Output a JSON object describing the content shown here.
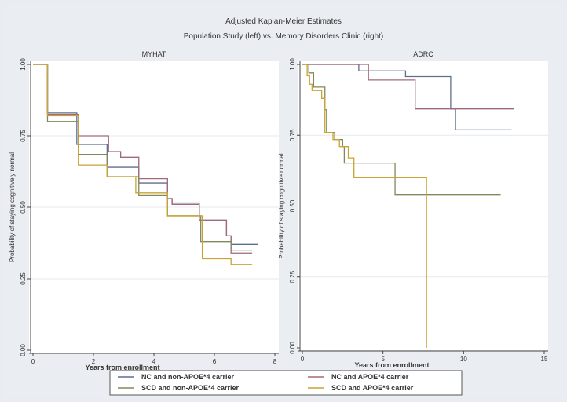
{
  "chart_data": {
    "title": "Adjusted Kaplan-Meier Estimates",
    "subtitle": "Population Study (left) vs. Memory Disorders Clinic (right)",
    "legend": {
      "placement": "bottom",
      "entries": [
        {
          "label": "NC and non-APOE*4 carrier",
          "color": "#5d6f8e"
        },
        {
          "label": "NC and APOE*4 carrier",
          "color": "#a3687a"
        },
        {
          "label": "SCD and non-APOE*4 carrier",
          "color": "#7f8a5c"
        },
        {
          "label": "SCD and APOE*4 carrier",
          "color": "#c9a232"
        }
      ]
    },
    "panels": [
      {
        "type": "line",
        "step": true,
        "title": "MYHAT",
        "xlabel": "Years from enrollment",
        "ylabel": "Probability of staying cognitively normal",
        "xlim": [
          0,
          8
        ],
        "ylim": [
          0,
          1
        ],
        "xticks": [
          "0",
          "2",
          "4",
          "6",
          "8"
        ],
        "xtick_values": [
          0,
          2,
          4,
          6,
          8
        ],
        "yticks": [
          "0.00",
          "0.25",
          "0.50",
          "0.75",
          "1.00"
        ],
        "ytick_values": [
          0,
          0.25,
          0.5,
          0.75,
          1
        ],
        "grid": true,
        "series": [
          {
            "name": "NC and non-APOE*4 carrier",
            "x": [
              0,
              0.48,
              1.45,
              2.45,
              3.5,
              4.45,
              4.6,
              5.5,
              6.4,
              6.55,
              7.45
            ],
            "y": [
              1,
              0.83,
              0.72,
              0.64,
              0.585,
              0.53,
              0.515,
              0.455,
              0.4,
              0.37,
              0.37
            ]
          },
          {
            "name": "NC and APOE*4 carrier",
            "x": [
              0,
              0.48,
              1.5,
              2.5,
              2.9,
              3.5,
              4.45,
              4.6,
              5.5,
              6.4,
              6.55,
              7.25
            ],
            "y": [
              1,
              0.825,
              0.75,
              0.695,
              0.675,
              0.6,
              0.53,
              0.51,
              0.455,
              0.4,
              0.34,
              0.34
            ]
          },
          {
            "name": "SCD and non-APOE*4 carrier",
            "x": [
              0,
              0.48,
              1.5,
              2.45,
              3.5,
              4.45,
              5.55,
              6.55,
              7.25
            ],
            "y": [
              1,
              0.8,
              0.685,
              0.607,
              0.543,
              0.47,
              0.38,
              0.35,
              0.35
            ]
          },
          {
            "name": "SCD and APOE*4 carrier",
            "x": [
              0,
              0.48,
              1.5,
              2.45,
              3.4,
              4.45,
              5.6,
              6.55,
              7.25
            ],
            "y": [
              1,
              0.82,
              0.648,
              0.607,
              0.55,
              0.47,
              0.32,
              0.3,
              0.3
            ]
          }
        ]
      },
      {
        "type": "line",
        "step": true,
        "title": "ADRC",
        "xlabel": "Years from enrollment",
        "ylabel": "Probability of staying cognitive normal",
        "xlim": [
          0,
          15
        ],
        "ylim": [
          0,
          1
        ],
        "xticks": [
          "0",
          "5",
          "10",
          "15"
        ],
        "xtick_values": [
          0,
          5,
          10,
          15
        ],
        "yticks": [
          "0.00",
          "0.25",
          "0.50",
          "0.75",
          "1.00"
        ],
        "ytick_values": [
          0,
          0.25,
          0.5,
          0.75,
          1
        ],
        "grid": true,
        "series": [
          {
            "name": "NC and non-APOE*4 carrier",
            "x": [
              0,
              3.5,
              6.4,
              9.2,
              9.5,
              12.97
            ],
            "y": [
              1,
              0.977,
              0.957,
              0.843,
              0.769,
              0.769
            ]
          },
          {
            "name": "NC and APOE*4 carrier",
            "x": [
              0,
              4.1,
              7.0,
              13.1
            ],
            "y": [
              1,
              0.945,
              0.843,
              0.843
            ]
          },
          {
            "name": "SCD and non-APOE*4 carrier",
            "x": [
              0,
              0.4,
              0.7,
              1.4,
              1.5,
              2.0,
              2.5,
              2.6,
              5.75,
              12.3
            ],
            "y": [
              1,
              0.97,
              0.92,
              0.84,
              0.76,
              0.735,
              0.71,
              0.652,
              0.541,
              0.541
            ]
          },
          {
            "name": "SCD and APOE*4 carrier",
            "x": [
              0,
              0.3,
              0.45,
              0.6,
              1.2,
              1.4,
              1.9,
              2.3,
              2.85,
              3.2,
              7.7
            ],
            "y": [
              1,
              0.96,
              0.93,
              0.908,
              0.88,
              0.76,
              0.735,
              0.71,
              0.67,
              0.6,
              0
            ]
          }
        ]
      }
    ]
  }
}
